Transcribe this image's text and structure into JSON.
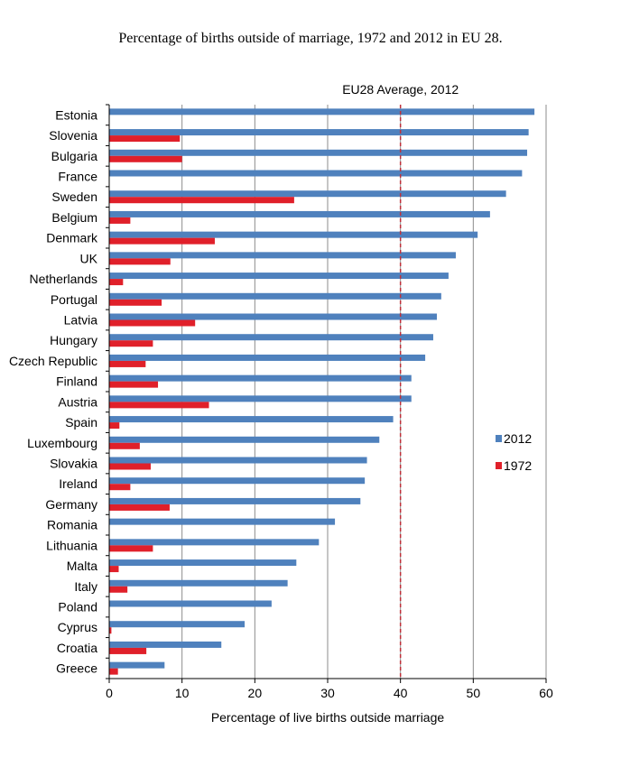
{
  "chart_data": {
    "type": "bar",
    "orientation": "horizontal",
    "title": "Percentage of births outside of marriage, 1972 and 2012 in EU 28.",
    "xlabel": "Percentage of live births outside marriage",
    "ylabel": "",
    "xlim": [
      0,
      60
    ],
    "xticks": [
      0,
      10,
      20,
      30,
      40,
      50,
      60
    ],
    "grid": true,
    "legend_position": "right",
    "reference_line": {
      "value": 40,
      "label": "EU28 Average, 2012",
      "color": "#c0303a"
    },
    "categories": [
      "Estonia",
      "Slovenia",
      "Bulgaria",
      "France",
      "Sweden",
      "Belgium",
      "Denmark",
      "UK",
      "Netherlands",
      "Portugal",
      "Latvia",
      "Hungary",
      "Czech Republic",
      "Finland",
      "Austria",
      "Spain",
      "Luxembourg",
      "Slovakia",
      "Ireland",
      "Germany",
      "Romania",
      "Lithuania",
      "Malta",
      "Italy",
      "Poland",
      "Cyprus",
      "Croatia",
      "Greece"
    ],
    "series": [
      {
        "name": "2012",
        "color": "#4f81bd",
        "values": [
          58.4,
          57.6,
          57.4,
          56.7,
          54.5,
          52.3,
          50.6,
          47.6,
          46.6,
          45.6,
          45.0,
          44.5,
          43.4,
          41.5,
          41.5,
          39.0,
          37.1,
          35.4,
          35.1,
          34.5,
          31.0,
          28.8,
          25.7,
          24.5,
          22.3,
          18.6,
          15.4,
          7.6
        ]
      },
      {
        "name": "1972",
        "color": "#e0202a",
        "values": [
          null,
          9.7,
          10.0,
          null,
          25.4,
          2.9,
          14.5,
          8.4,
          1.9,
          7.2,
          11.8,
          6.0,
          5.0,
          6.7,
          13.7,
          1.4,
          4.2,
          5.7,
          2.9,
          8.3,
          null,
          6.0,
          1.3,
          2.5,
          null,
          0.3,
          5.1,
          1.2
        ]
      }
    ]
  }
}
